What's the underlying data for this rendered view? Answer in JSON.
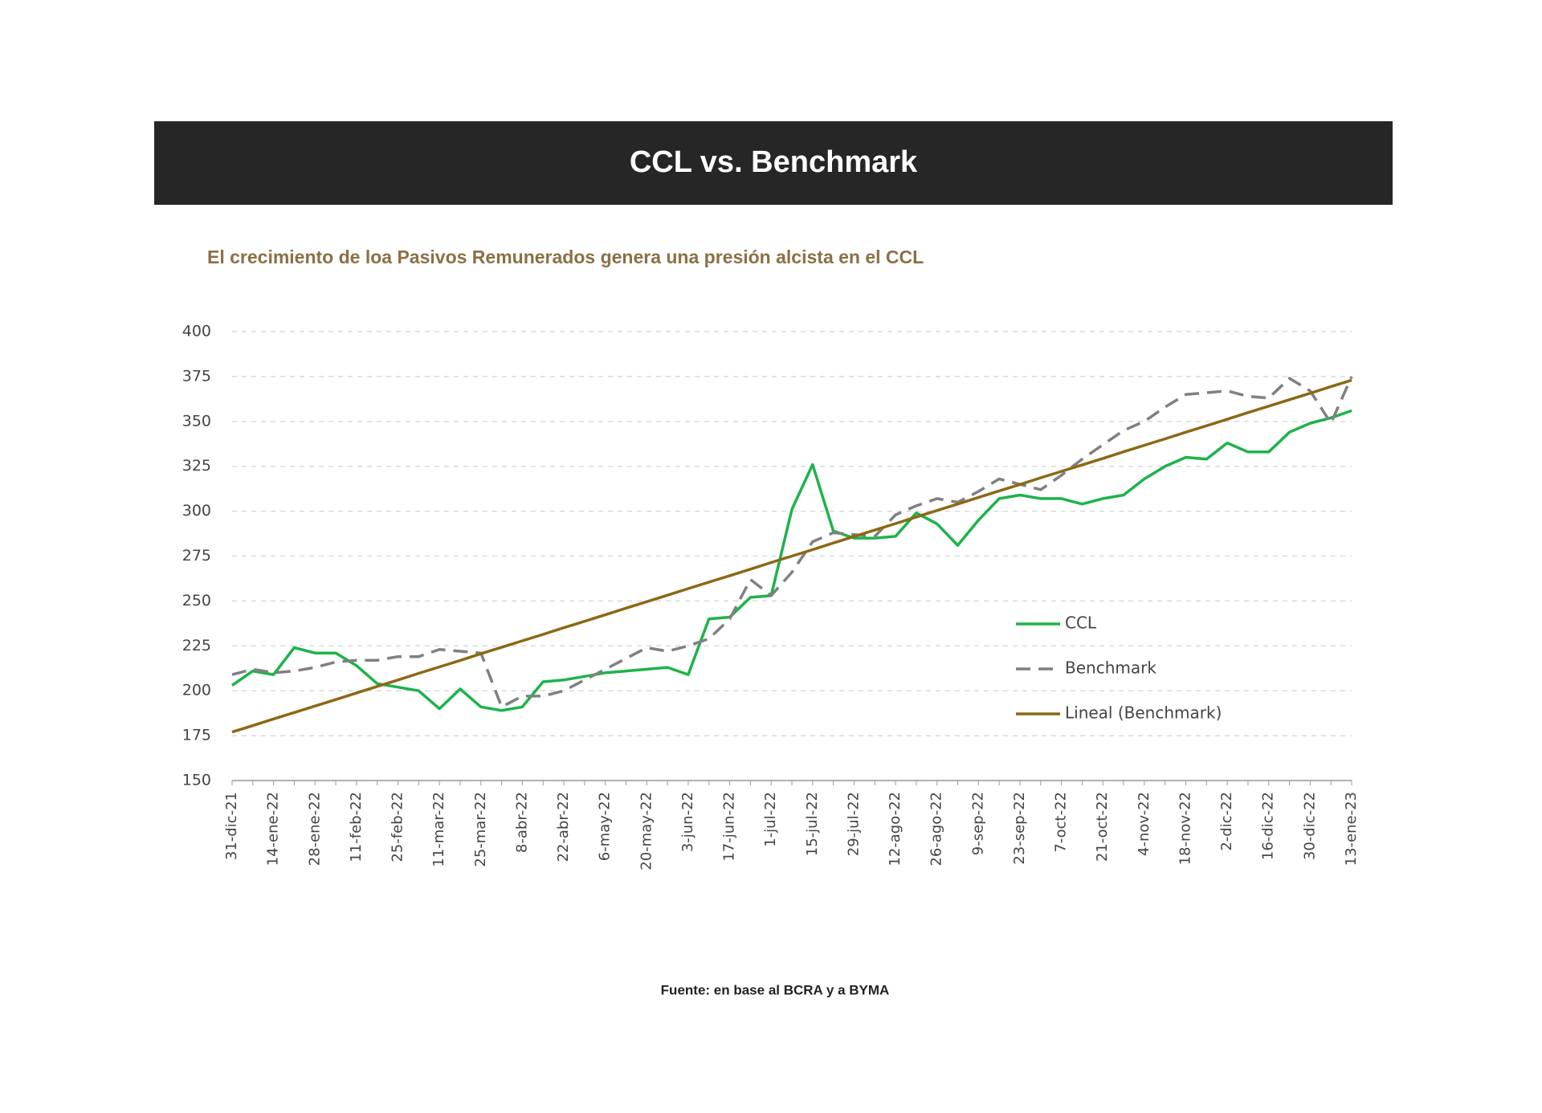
{
  "chart_data": {
    "type": "line",
    "title": "CCL vs. Benchmark",
    "subtitle": "El crecimiento de loa Pasivos Remunerados genera una presión alcista en el CCL",
    "source": "Fuente: en base al BCRA y a BYMA",
    "categories": [
      "31-dic-21",
      null,
      "14-ene-22",
      null,
      "28-ene-22",
      null,
      "11-feb-22",
      null,
      "25-feb-22",
      null,
      "11-mar-22",
      null,
      "25-mar-22",
      null,
      "8-abr-22",
      null,
      "22-abr-22",
      null,
      "6-may-22",
      null,
      "20-may-22",
      null,
      "3-jun-22",
      null,
      "17-jun-22",
      null,
      "1-jul-22",
      null,
      "15-jul-22",
      null,
      "29-jul-22",
      null,
      "12-ago-22",
      null,
      "26-ago-22",
      null,
      "9-sep-22",
      null,
      "23-sep-22",
      null,
      "7-oct-22",
      null,
      "21-oct-22",
      null,
      "4-nov-22",
      null,
      "18-nov-22",
      null,
      "2-dic-22",
      null,
      "16-dic-22",
      null,
      "30-dic-22",
      null,
      "13-ene-23"
    ],
    "series": [
      {
        "name": "CCL",
        "color": "#1db34a",
        "line_style": "solid",
        "values": [
          203,
          211,
          209,
          224,
          221,
          221,
          214,
          204,
          202,
          200,
          190,
          201,
          191,
          189,
          191,
          205,
          206,
          208,
          210,
          211,
          212,
          213,
          209,
          240,
          241,
          252,
          253,
          301,
          326,
          289,
          285,
          285,
          286,
          299,
          293,
          281,
          295,
          307,
          309,
          307,
          307,
          304,
          307,
          309,
          318,
          325,
          330,
          329,
          338,
          333,
          333,
          344,
          349,
          352,
          356
        ]
      },
      {
        "name": "Benchmark",
        "color": "#808080",
        "line_style": "dashed",
        "values": [
          209,
          212,
          210,
          211,
          213,
          216,
          217,
          217,
          219,
          219,
          223,
          222,
          221,
          191,
          197,
          197,
          200,
          206,
          212,
          218,
          224,
          222,
          225,
          229,
          240,
          262,
          253,
          266,
          283,
          288,
          287,
          286,
          298,
          303,
          307,
          305,
          311,
          318,
          315,
          312,
          320,
          329,
          337,
          345,
          350,
          358,
          365,
          366,
          367,
          364,
          363,
          374,
          367,
          349,
          375
        ]
      },
      {
        "name": "Lineal (Benchmark)",
        "color": "#8b6914",
        "line_style": "solid",
        "values": [
          177,
          180.6,
          184.3,
          187.9,
          191.5,
          195.1,
          198.8,
          202.4,
          206.0,
          209.7,
          213.3,
          216.9,
          220.6,
          224.2,
          227.8,
          231.4,
          235.1,
          238.7,
          242.3,
          246.0,
          249.6,
          253.2,
          256.9,
          260.5,
          264.1,
          267.7,
          271.4,
          275.0,
          278.6,
          282.3,
          285.9,
          289.5,
          293.1,
          296.8,
          300.4,
          304.0,
          307.7,
          311.3,
          314.9,
          318.6,
          322.2,
          325.8,
          329.4,
          333.1,
          336.7,
          340.3,
          344.0,
          347.6,
          351.2,
          354.9,
          358.5,
          362.1,
          365.7,
          369.4,
          373
        ]
      }
    ],
    "ylim": [
      150,
      400
    ],
    "yticks": [
      150,
      175,
      200,
      225,
      250,
      275,
      300,
      325,
      350,
      375,
      400
    ],
    "grid": true
  }
}
